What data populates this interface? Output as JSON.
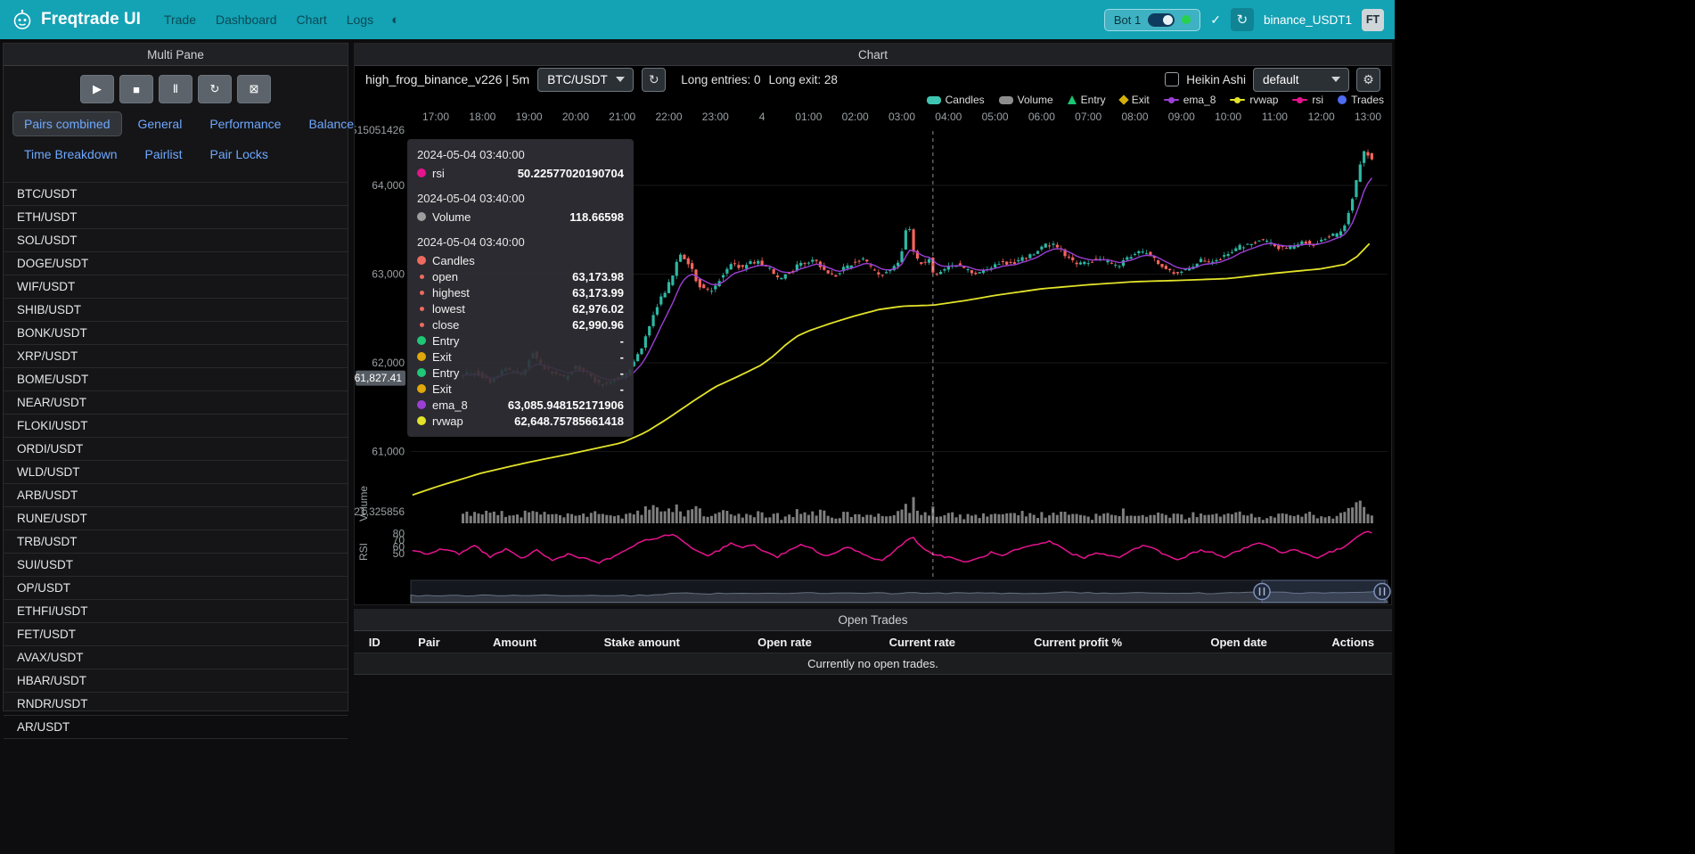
{
  "navbar": {
    "brand": "Freqtrade UI",
    "links": [
      "Trade",
      "Dashboard",
      "Chart",
      "Logs"
    ],
    "icons": {
      "check": "✓",
      "refresh": "↻",
      "gear": "⚙",
      "theme": "◐"
    },
    "bot": {
      "name": "Bot 1",
      "online": true
    },
    "account": "binance_USDT1",
    "avatar": "FT"
  },
  "left_panel": {
    "title": "Multi Pane",
    "controls": [
      {
        "name": "play",
        "icon": "▶"
      },
      {
        "name": "stop",
        "icon": "■"
      },
      {
        "name": "pause",
        "icon": "Ⅱ"
      },
      {
        "name": "reload",
        "icon": "↻"
      },
      {
        "name": "reset-charts",
        "icon": "⊠"
      }
    ],
    "tabs_row1": [
      "Pairs combined",
      "General",
      "Performance",
      "Balance"
    ],
    "tabs_row2": [
      "Time Breakdown",
      "Pairlist",
      "Pair Locks"
    ],
    "active_tab": "Pairs combined",
    "pairs": [
      "BTC/USDT",
      "ETH/USDT",
      "SOL/USDT",
      "DOGE/USDT",
      "WIF/USDT",
      "SHIB/USDT",
      "BONK/USDT",
      "XRP/USDT",
      "BOME/USDT",
      "NEAR/USDT",
      "FLOKI/USDT",
      "ORDI/USDT",
      "WLD/USDT",
      "ARB/USDT",
      "RUNE/USDT",
      "TRB/USDT",
      "SUI/USDT",
      "OP/USDT",
      "ETHFI/USDT",
      "FET/USDT",
      "AVAX/USDT",
      "HBAR/USDT",
      "RNDR/USDT",
      "AR/USDT"
    ]
  },
  "chart_panel": {
    "title": "Chart",
    "strategy": "high_frog_binance_v226 | 5m",
    "pair_select": "BTC/USDT",
    "long_entries": "Long entries: 0",
    "long_exits": "Long exit: 28",
    "heikin_ashi_label": "Heikin Ashi",
    "plot_config_select": "default",
    "legend": [
      {
        "label": "Candles",
        "type": "pill",
        "color": "#3fc6b3"
      },
      {
        "label": "Volume",
        "type": "pill",
        "color": "#8d8d8d"
      },
      {
        "label": "Entry",
        "type": "triangle",
        "color": "#18c873"
      },
      {
        "label": "Exit",
        "type": "diamond",
        "color": "#d4b10a"
      },
      {
        "label": "ema_8",
        "type": "line",
        "color": "#9c3fd6"
      },
      {
        "label": "rvwap",
        "type": "line",
        "color": "#e3e32a"
      },
      {
        "label": "rsi",
        "type": "line",
        "color": "#e6138e"
      },
      {
        "label": "Trades",
        "type": "circle",
        "color": "#4f6bf0"
      }
    ]
  },
  "tooltip": {
    "sections": [
      {
        "date": "2024-05-04 03:40:00",
        "rows": [
          {
            "dot": "#e6138e",
            "label": "rsi",
            "value": "50.22577020190704"
          }
        ]
      },
      {
        "date": "2024-05-04 03:40:00",
        "rows": [
          {
            "dot": "#9e9e9e",
            "label": "Volume",
            "value": "118.66598"
          }
        ]
      },
      {
        "date": "2024-05-04 03:40:00",
        "rows": [
          {
            "dot": "#ee6a5f",
            "label": "Candles",
            "value": ""
          },
          {
            "dot": "#ee6a5f",
            "small": true,
            "label": "open",
            "value": "63,173.98"
          },
          {
            "dot": "#ee6a5f",
            "small": true,
            "label": "highest",
            "value": "63,173.99"
          },
          {
            "dot": "#ee6a5f",
            "small": true,
            "label": "lowest",
            "value": "62,976.02"
          },
          {
            "dot": "#ee6a5f",
            "small": true,
            "label": "close",
            "value": "62,990.96"
          },
          {
            "dot": "#1fc776",
            "label": "Entry",
            "value": "-"
          },
          {
            "dot": "#e0a80b",
            "label": "Exit",
            "value": "-"
          },
          {
            "dot": "#1fc776",
            "label": "Entry",
            "value": "-"
          },
          {
            "dot": "#e0a80b",
            "label": "Exit",
            "value": "-"
          },
          {
            "dot": "#9c3fd6",
            "label": "ema_8",
            "value": "63,085.948152171906"
          },
          {
            "dot": "#e3e32a",
            "label": "rvwap",
            "value": "62,648.75785661418"
          }
        ]
      }
    ]
  },
  "open_trades": {
    "title": "Open Trades",
    "columns": [
      "ID",
      "Pair",
      "Amount",
      "Stake amount",
      "Open rate",
      "Current rate",
      "Current profit %",
      "Open date",
      "Actions"
    ],
    "empty_text": "Currently no open trades."
  },
  "chart_data": {
    "type": "candlestick",
    "pair": "BTC/USDT",
    "timeframe": "5m",
    "x_labels": [
      "17:00",
      "18:00",
      "19:00",
      "20:00",
      "21:00",
      "22:00",
      "23:00",
      "4",
      "01:00",
      "02:00",
      "03:00",
      "04:00",
      "05:00",
      "06:00",
      "07:00",
      "08:00",
      "09:00",
      "10:00",
      "11:00",
      "12:00",
      "13:00"
    ],
    "price_axis": [
      {
        "label": "64,000",
        "value": 64000
      },
      {
        "label": "63,000",
        "value": 63000
      },
      {
        "label": "62,000",
        "value": 62000
      },
      {
        "label": "61,000",
        "value": 61000
      }
    ],
    "rsi_axis": [
      {
        "label": "80",
        "value": 80
      },
      {
        "label": "70",
        "value": 70
      },
      {
        "label": "60",
        "value": 60
      },
      {
        "label": "50",
        "value": 50
      }
    ],
    "stray_labels": {
      "top": "515051426",
      "volume": "21,325856"
    },
    "pane_labels": {
      "volume": "Volume",
      "rsi": "RSI"
    },
    "crosshair": {
      "t": 640,
      "price": 61827.41,
      "label": "61,827.41",
      "time": "2024-05-04 03:40:00"
    },
    "ylim": [
      60500,
      64600
    ],
    "candles_from": 35,
    "candles_to": 1208,
    "colors": {
      "up": "#2db8a4",
      "down": "#f4655c",
      "volume": "#9e9e9e",
      "ema": "#9c3fd6",
      "rvwap": "#e3e32a",
      "rsi": "#e6138e"
    },
    "price_path": [
      [
        35,
        61850
      ],
      [
        55,
        61900
      ],
      [
        75,
        61790
      ],
      [
        95,
        61940
      ],
      [
        115,
        61860
      ],
      [
        130,
        62120
      ],
      [
        140,
        61980
      ],
      [
        155,
        61880
      ],
      [
        170,
        61830
      ],
      [
        185,
        61950
      ],
      [
        200,
        61880
      ],
      [
        215,
        61760
      ],
      [
        230,
        61800
      ],
      [
        240,
        61830
      ],
      [
        252,
        61900
      ],
      [
        262,
        62030
      ],
      [
        272,
        62220
      ],
      [
        282,
        62460
      ],
      [
        292,
        62680
      ],
      [
        302,
        62840
      ],
      [
        312,
        63020
      ],
      [
        318,
        63230
      ],
      [
        326,
        63180
      ],
      [
        334,
        63060
      ],
      [
        342,
        62900
      ],
      [
        352,
        62810
      ],
      [
        362,
        62840
      ],
      [
        374,
        62990
      ],
      [
        386,
        63110
      ],
      [
        398,
        63070
      ],
      [
        410,
        63140
      ],
      [
        422,
        63130
      ],
      [
        434,
        63060
      ],
      [
        446,
        62950
      ],
      [
        458,
        63010
      ],
      [
        470,
        63090
      ],
      [
        482,
        63140
      ],
      [
        494,
        63160
      ],
      [
        506,
        63030
      ],
      [
        518,
        62980
      ],
      [
        530,
        63060
      ],
      [
        542,
        63130
      ],
      [
        554,
        63180
      ],
      [
        566,
        63060
      ],
      [
        578,
        62990
      ],
      [
        590,
        63060
      ],
      [
        602,
        63150
      ],
      [
        608,
        63380
      ],
      [
        613,
        63660
      ],
      [
        618,
        63300
      ],
      [
        624,
        63160
      ],
      [
        632,
        63120
      ],
      [
        640,
        63174
      ],
      [
        646,
        62991
      ],
      [
        654,
        63040
      ],
      [
        662,
        63070
      ],
      [
        674,
        63120
      ],
      [
        686,
        63060
      ],
      [
        698,
        63010
      ],
      [
        710,
        63040
      ],
      [
        722,
        63090
      ],
      [
        734,
        63150
      ],
      [
        746,
        63110
      ],
      [
        758,
        63170
      ],
      [
        770,
        63210
      ],
      [
        780,
        63270
      ],
      [
        790,
        63330
      ],
      [
        800,
        63350
      ],
      [
        810,
        63260
      ],
      [
        822,
        63160
      ],
      [
        834,
        63110
      ],
      [
        846,
        63150
      ],
      [
        858,
        63180
      ],
      [
        870,
        63130
      ],
      [
        882,
        63090
      ],
      [
        894,
        63170
      ],
      [
        906,
        63230
      ],
      [
        918,
        63250
      ],
      [
        930,
        63160
      ],
      [
        942,
        63060
      ],
      [
        954,
        63010
      ],
      [
        966,
        63040
      ],
      [
        978,
        63090
      ],
      [
        990,
        63150
      ],
      [
        1002,
        63110
      ],
      [
        1014,
        63170
      ],
      [
        1026,
        63240
      ],
      [
        1038,
        63300
      ],
      [
        1050,
        63340
      ],
      [
        1062,
        63380
      ],
      [
        1074,
        63360
      ],
      [
        1086,
        63310
      ],
      [
        1098,
        63290
      ],
      [
        1110,
        63320
      ],
      [
        1122,
        63360
      ],
      [
        1134,
        63330
      ],
      [
        1146,
        63390
      ],
      [
        1158,
        63430
      ],
      [
        1168,
        63470
      ],
      [
        1176,
        63580
      ],
      [
        1184,
        63820
      ],
      [
        1190,
        64050
      ],
      [
        1196,
        64280
      ],
      [
        1202,
        64420
      ],
      [
        1208,
        64280
      ]
    ],
    "rvwap": [
      [
        -30,
        60510
      ],
      [
        0,
        60600
      ],
      [
        60,
        60760
      ],
      [
        120,
        60880
      ],
      [
        180,
        60985
      ],
      [
        240,
        61100
      ],
      [
        270,
        61215
      ],
      [
        300,
        61380
      ],
      [
        330,
        61560
      ],
      [
        360,
        61730
      ],
      [
        390,
        61850
      ],
      [
        420,
        61980
      ],
      [
        435,
        62080
      ],
      [
        450,
        62200
      ],
      [
        465,
        62300
      ],
      [
        480,
        62360
      ],
      [
        510,
        62450
      ],
      [
        540,
        62530
      ],
      [
        570,
        62600
      ],
      [
        600,
        62638
      ],
      [
        640,
        62650
      ],
      [
        680,
        62700
      ],
      [
        720,
        62760
      ],
      [
        780,
        62835
      ],
      [
        840,
        62880
      ],
      [
        900,
        62915
      ],
      [
        960,
        62930
      ],
      [
        1020,
        62950
      ],
      [
        1080,
        63010
      ],
      [
        1140,
        63060
      ],
      [
        1170,
        63110
      ],
      [
        1185,
        63190
      ],
      [
        1195,
        63280
      ],
      [
        1208,
        63400
      ]
    ],
    "rsi": [
      [
        -30,
        55
      ],
      [
        -10,
        50
      ],
      [
        10,
        58
      ],
      [
        30,
        50
      ],
      [
        50,
        63
      ],
      [
        70,
        46
      ],
      [
        90,
        57
      ],
      [
        110,
        43
      ],
      [
        130,
        56
      ],
      [
        150,
        40
      ],
      [
        170,
        50
      ],
      [
        190,
        44
      ],
      [
        210,
        37
      ],
      [
        230,
        46
      ],
      [
        250,
        60
      ],
      [
        270,
        70
      ],
      [
        290,
        76
      ],
      [
        305,
        79
      ],
      [
        320,
        68
      ],
      [
        335,
        55
      ],
      [
        350,
        48
      ],
      [
        365,
        56
      ],
      [
        380,
        67
      ],
      [
        395,
        59
      ],
      [
        410,
        64
      ],
      [
        425,
        52
      ],
      [
        440,
        46
      ],
      [
        455,
        55
      ],
      [
        470,
        63
      ],
      [
        485,
        58
      ],
      [
        500,
        47
      ],
      [
        515,
        52
      ],
      [
        530,
        60
      ],
      [
        545,
        54
      ],
      [
        560,
        44
      ],
      [
        575,
        40
      ],
      [
        590,
        55
      ],
      [
        605,
        70
      ],
      [
        615,
        74
      ],
      [
        630,
        56
      ],
      [
        640,
        50.2
      ],
      [
        655,
        46
      ],
      [
        670,
        42
      ],
      [
        685,
        38
      ],
      [
        700,
        44
      ],
      [
        715,
        52
      ],
      [
        730,
        47
      ],
      [
        745,
        55
      ],
      [
        760,
        60
      ],
      [
        775,
        64
      ],
      [
        790,
        69
      ],
      [
        805,
        60
      ],
      [
        820,
        50
      ],
      [
        835,
        44
      ],
      [
        850,
        53
      ],
      [
        865,
        48
      ],
      [
        880,
        44
      ],
      [
        895,
        56
      ],
      [
        910,
        62
      ],
      [
        925,
        58
      ],
      [
        940,
        48
      ],
      [
        955,
        41
      ],
      [
        970,
        49
      ],
      [
        985,
        56
      ],
      [
        1000,
        52
      ],
      [
        1015,
        46
      ],
      [
        1030,
        53
      ],
      [
        1045,
        60
      ],
      [
        1060,
        67
      ],
      [
        1075,
        60
      ],
      [
        1090,
        52
      ],
      [
        1105,
        57
      ],
      [
        1120,
        50
      ],
      [
        1135,
        45
      ],
      [
        1150,
        52
      ],
      [
        1165,
        58
      ],
      [
        1180,
        70
      ],
      [
        1190,
        80
      ],
      [
        1198,
        85
      ],
      [
        1208,
        79
      ]
    ]
  }
}
